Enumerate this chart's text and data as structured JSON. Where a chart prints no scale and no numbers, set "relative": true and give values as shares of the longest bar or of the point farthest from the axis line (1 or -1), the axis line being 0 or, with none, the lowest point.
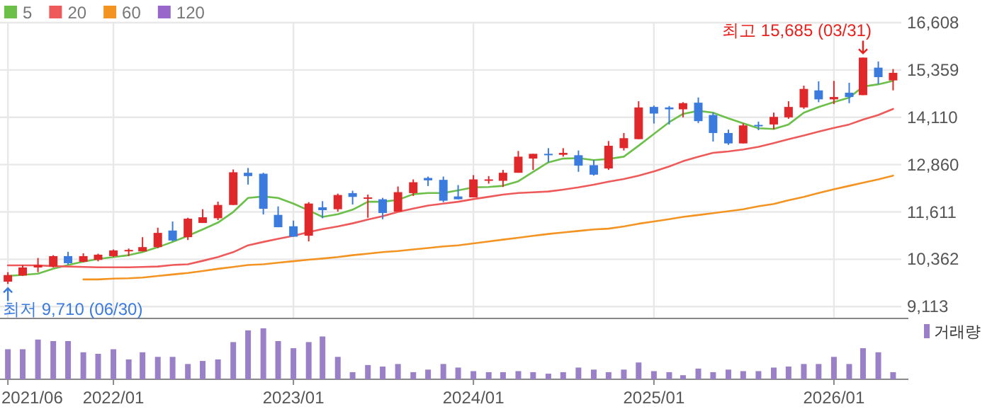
{
  "chart_data": [
    {
      "type": "candlestick",
      "x": [
        "2021-06",
        "2021-07",
        "2021-08",
        "2021-09",
        "2021-10",
        "2021-11",
        "2021-12",
        "2022-01",
        "2022-02",
        "2022-03",
        "2022-04",
        "2022-05",
        "2022-06",
        "2022-07",
        "2022-08",
        "2022-09",
        "2022-10",
        "2022-11",
        "2022-12",
        "2023-01",
        "2023-02",
        "2023-03",
        "2023-04",
        "2023-05",
        "2023-06",
        "2023-07",
        "2023-08",
        "2023-09",
        "2023-10",
        "2023-11",
        "2023-12",
        "2024-01",
        "2024-02",
        "2024-03",
        "2024-04",
        "2024-05",
        "2024-06",
        "2024-07",
        "2024-08",
        "2024-09",
        "2024-10",
        "2024-11",
        "2024-12",
        "2025-01",
        "2025-02",
        "2025-03",
        "2025-04",
        "2025-05",
        "2025-06",
        "2025-07",
        "2025-08",
        "2025-09",
        "2025-10",
        "2025-11",
        "2025-12",
        "2026-01",
        "2026-02",
        "2026-03",
        "2026-04",
        "2026-05"
      ],
      "ohlc": [
        [
          9770,
          10020,
          9710,
          9945
        ],
        [
          9933,
          10208,
          9920,
          10145
        ],
        [
          10145,
          10395,
          10020,
          10208
        ],
        [
          10170,
          10470,
          10145,
          10445
        ],
        [
          10445,
          10558,
          10220,
          10258
        ],
        [
          10295,
          10520,
          10283,
          10445
        ],
        [
          10345,
          10508,
          10308,
          10483
        ],
        [
          10445,
          10620,
          10420,
          10595
        ],
        [
          10583,
          10645,
          10445,
          10608
        ],
        [
          10570,
          10945,
          10570,
          10683
        ],
        [
          10683,
          11195,
          10658,
          11058
        ],
        [
          11120,
          11358,
          10833,
          10858
        ],
        [
          10945,
          11458,
          10870,
          11433
        ],
        [
          11320,
          11683,
          11320,
          11470
        ],
        [
          11445,
          11883,
          11395,
          11795
        ],
        [
          11795,
          12733,
          11795,
          12658
        ],
        [
          12645,
          12770,
          12333,
          12558
        ],
        [
          12620,
          12645,
          11545,
          11695
        ],
        [
          11533,
          11758,
          11208,
          11208
        ],
        [
          11233,
          11383,
          10958,
          10958
        ],
        [
          10983,
          11870,
          10833,
          11833
        ],
        [
          11733,
          11895,
          11445,
          11658
        ],
        [
          11683,
          12095,
          11620,
          12058
        ],
        [
          12108,
          12170,
          11808,
          12008
        ],
        [
          11970,
          12070,
          11458,
          11995
        ],
        [
          11945,
          11983,
          11420,
          11583
        ],
        [
          11620,
          12283,
          11620,
          12133
        ],
        [
          12108,
          12470,
          12033,
          12395
        ],
        [
          12508,
          12545,
          12295,
          12445
        ],
        [
          12458,
          12545,
          11870,
          11908
        ],
        [
          12020,
          12320,
          11945,
          11945
        ],
        [
          11995,
          12583,
          11995,
          12470
        ],
        [
          12445,
          12558,
          12358,
          12470
        ],
        [
          12433,
          12720,
          12270,
          12645
        ],
        [
          12645,
          13220,
          12645,
          13070
        ],
        [
          13020,
          13145,
          12720,
          13145
        ],
        [
          13145,
          13295,
          12920,
          13120
        ],
        [
          13120,
          13295,
          13070,
          13170
        ],
        [
          13108,
          13233,
          12670,
          12833
        ],
        [
          12845,
          12983,
          12570,
          12595
        ],
        [
          12758,
          13483,
          12720,
          13358
        ],
        [
          13295,
          13695,
          13233,
          13558
        ],
        [
          13533,
          14533,
          13533,
          14370
        ],
        [
          14383,
          14420,
          13945,
          14208
        ],
        [
          14370,
          14408,
          13920,
          14320
        ],
        [
          14320,
          14508,
          14108,
          14483
        ],
        [
          14495,
          14633,
          13958,
          14008
        ],
        [
          14170,
          14233,
          13470,
          13695
        ],
        [
          13695,
          13783,
          13383,
          13420
        ],
        [
          13420,
          13945,
          13420,
          13895
        ],
        [
          13908,
          13995,
          13770,
          13883
        ],
        [
          13920,
          14233,
          13795,
          14120
        ],
        [
          14108,
          14533,
          14070,
          14383
        ],
        [
          14370,
          14945,
          14333,
          14858
        ],
        [
          14820,
          15058,
          14508,
          14583
        ],
        [
          14583,
          15070,
          14458,
          14645
        ],
        [
          14758,
          15020,
          14483,
          14645
        ],
        [
          14695,
          15685,
          14695,
          15685
        ],
        [
          15420,
          15583,
          14983,
          15170
        ],
        [
          15083,
          15383,
          14820,
          15283
        ]
      ],
      "series": [
        {
          "name": "5",
          "type": "line",
          "color": "#6cc04a",
          "values": [
            9920,
            9950,
            9980,
            10110,
            10210,
            10300,
            10370,
            10420,
            10470,
            10550,
            10680,
            10820,
            10980,
            11150,
            11330,
            11610,
            11980,
            12020,
            11980,
            11830,
            11650,
            11480,
            11550,
            11670,
            11880,
            11880,
            11930,
            12080,
            12110,
            12110,
            12180,
            12260,
            12270,
            12300,
            12420,
            12670,
            12920,
            13020,
            13030,
            12980,
            13010,
            13070,
            13360,
            13670,
            13980,
            14200,
            14280,
            14230,
            14080,
            13950,
            13820,
            13800,
            13920,
            14230,
            14380,
            14510,
            14630,
            14920,
            14980,
            15070
          ]
        },
        {
          "name": "20",
          "type": "line",
          "color": "#ee5a5a",
          "values": [
            10200,
            10200,
            10200,
            10180,
            10170,
            10160,
            10150,
            10150,
            10150,
            10160,
            10170,
            10210,
            10230,
            10320,
            10420,
            10550,
            10730,
            10820,
            10900,
            10980,
            11080,
            11160,
            11230,
            11310,
            11410,
            11500,
            11610,
            11700,
            11780,
            11830,
            11880,
            11950,
            12010,
            12070,
            12110,
            12130,
            12150,
            12200,
            12260,
            12330,
            12410,
            12480,
            12570,
            12680,
            12810,
            12950,
            13070,
            13170,
            13210,
            13260,
            13330,
            13430,
            13530,
            13630,
            13730,
            13830,
            13920,
            14050,
            14170,
            14330
          ]
        },
        {
          "name": "60",
          "type": "line",
          "color": "#f39422",
          "values": [
            null,
            null,
            null,
            null,
            null,
            9830,
            9830,
            9850,
            9860,
            9880,
            9920,
            9960,
            10000,
            10050,
            10110,
            10160,
            10210,
            10230,
            10270,
            10310,
            10350,
            10380,
            10420,
            10470,
            10510,
            10550,
            10580,
            10620,
            10660,
            10700,
            10730,
            10780,
            10830,
            10880,
            10930,
            10980,
            11030,
            11070,
            11110,
            11150,
            11170,
            11230,
            11300,
            11360,
            11420,
            11480,
            11530,
            11580,
            11630,
            11680,
            11760,
            11820,
            11920,
            12010,
            12110,
            12210,
            12300,
            12380,
            12470,
            12570
          ]
        },
        {
          "name": "120",
          "type": "line",
          "color": "#9966cc",
          "values": [
            null,
            null,
            null,
            null,
            null,
            null,
            null,
            null,
            null,
            null,
            null,
            null,
            null,
            null,
            null,
            null,
            null,
            null,
            null,
            null,
            null,
            null,
            null,
            null,
            null,
            null,
            null,
            null,
            null,
            null,
            null,
            null,
            null,
            null,
            null,
            null,
            null,
            null,
            null,
            null,
            null,
            null,
            null,
            null,
            null,
            null,
            null,
            null,
            null,
            null,
            null,
            null,
            null,
            null,
            null,
            null,
            null,
            null,
            null,
            null
          ]
        }
      ],
      "xlim": [
        "2021-05-16",
        "2026-06-01"
      ],
      "xticks": [
        {
          "value": "2021-06",
          "label": null
        },
        {
          "value": "2022-01",
          "label": null
        },
        {
          "value": "2023-01",
          "label": null
        },
        {
          "value": "2024-01",
          "label": null
        },
        {
          "value": "2025-01",
          "label": null
        },
        {
          "value": "2026-01",
          "label": null
        }
      ],
      "ylim": [
        8800,
        16608
      ],
      "yticks": [
        {
          "value": 9113,
          "label": "9,113"
        },
        {
          "value": 10362,
          "label": "10,362"
        },
        {
          "value": 11611,
          "label": "11,611"
        },
        {
          "value": 12860,
          "label": "12,860"
        },
        {
          "value": 14110,
          "label": "14,110"
        },
        {
          "value": 15359,
          "label": "15,359"
        },
        {
          "value": 16608,
          "label": "16,608"
        }
      ],
      "grid": true,
      "legend": "top left",
      "tick_labels": "y",
      "annotations": [
        {
          "text": "최고 15,685 (03/31)",
          "x": "2026-03",
          "y": 15685
        },
        {
          "text": "최저 9,710 (06/30)",
          "x": "2021-06",
          "y": 9710
        }
      ]
    },
    {
      "type": "bar",
      "relative": true,
      "x": [
        "2021-06",
        "2021-07",
        "2021-08",
        "2021-09",
        "2021-10",
        "2021-11",
        "2021-12",
        "2022-01",
        "2022-02",
        "2022-03",
        "2022-04",
        "2022-05",
        "2022-06",
        "2022-07",
        "2022-08",
        "2022-09",
        "2022-10",
        "2022-11",
        "2022-12",
        "2023-01",
        "2023-02",
        "2023-03",
        "2023-04",
        "2023-05",
        "2023-06",
        "2023-07",
        "2023-08",
        "2023-09",
        "2023-10",
        "2023-11",
        "2023-12",
        "2024-01",
        "2024-02",
        "2024-03",
        "2024-04",
        "2024-05",
        "2024-06",
        "2024-07",
        "2024-08",
        "2024-09",
        "2024-10",
        "2024-11",
        "2024-12",
        "2025-01",
        "2025-02",
        "2025-03",
        "2025-04",
        "2025-05",
        "2025-06",
        "2025-07",
        "2025-08",
        "2025-09",
        "2025-10",
        "2025-11",
        "2025-12",
        "2026-01",
        "2026-02",
        "2026-03",
        "2026-04",
        "2026-05"
      ],
      "series": [
        {
          "name": "거래량",
          "color": "#9a80c6",
          "values": [
            0.59,
            0.59,
            0.78,
            0.75,
            0.75,
            0.53,
            0.5,
            0.59,
            0.39,
            0.53,
            0.44,
            0.44,
            0.3,
            0.36,
            0.39,
            0.73,
            0.96,
            1,
            0.75,
            0.61,
            0.73,
            0.84,
            0.44,
            0.14,
            0.28,
            0.25,
            0.3,
            0.14,
            0.19,
            0.3,
            0.23,
            0.16,
            0.14,
            0.14,
            0.16,
            0.14,
            0.11,
            0.14,
            0.23,
            0.19,
            0.14,
            0.19,
            0.33,
            0.16,
            0.14,
            0.08,
            0.21,
            0.14,
            0.19,
            0.16,
            0.16,
            0.23,
            0.25,
            0.3,
            0.3,
            0.44,
            0.3,
            0.61,
            0.53,
            0.14
          ]
        }
      ],
      "xlim": [
        "2021-05-16",
        "2026-06-01"
      ],
      "xticks": [
        {
          "value": "2021-06",
          "label": "2021/06"
        },
        {
          "value": "2022-01",
          "label": "2022/01"
        },
        {
          "value": "2023-01",
          "label": "2023/01"
        },
        {
          "value": "2024-01",
          "label": "2024/01"
        },
        {
          "value": "2025-01",
          "label": "2025/01"
        },
        {
          "value": "2026-01",
          "label": "2026/01"
        }
      ],
      "legend": "top right",
      "tick_labels": "x"
    }
  ]
}
